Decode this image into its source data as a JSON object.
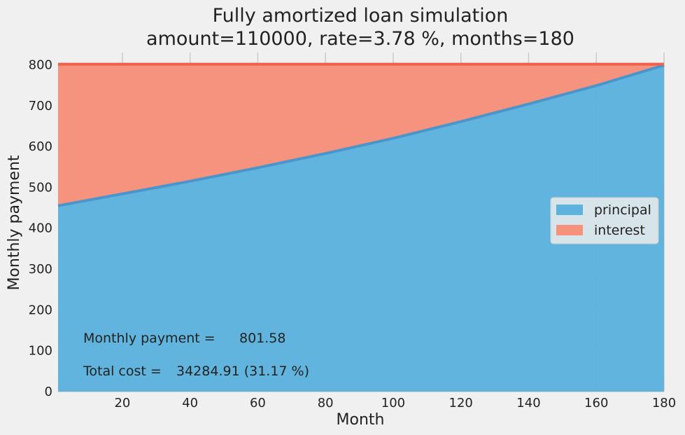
{
  "chart_data": {
    "type": "area",
    "title": "Fully amortized loan simulation",
    "subtitle": "amount=110000, rate=3.78 %, months=180",
    "xlabel": "Month",
    "ylabel": "Monthly payment",
    "xlim": [
      1,
      180
    ],
    "ylim": [
      0,
      830
    ],
    "xticks": [
      20,
      40,
      60,
      80,
      100,
      120,
      140,
      160,
      180
    ],
    "yticks": [
      0,
      100,
      200,
      300,
      400,
      500,
      600,
      700,
      800
    ],
    "grid": true,
    "stacked": true,
    "legend_position": "center-right",
    "monthly_payment": 801.58,
    "x": [
      1,
      20,
      40,
      60,
      80,
      100,
      120,
      140,
      160,
      180
    ],
    "series": [
      {
        "name": "principal",
        "color": "#5eb3dc",
        "values": [
          455,
          484,
          515,
          548,
          583,
          620,
          661,
          704,
          749,
          799
        ]
      },
      {
        "name": "interest",
        "color": "#f6917b",
        "values": [
          346.58,
          317.58,
          286.58,
          253.58,
          218.58,
          181.58,
          140.58,
          97.58,
          52.58,
          2.58
        ]
      }
    ],
    "annotations": [
      {
        "label": "Monthly payment =",
        "value": "801.58"
      },
      {
        "label": "Total cost =",
        "value": "34284.91 (31.17 %)"
      }
    ]
  }
}
